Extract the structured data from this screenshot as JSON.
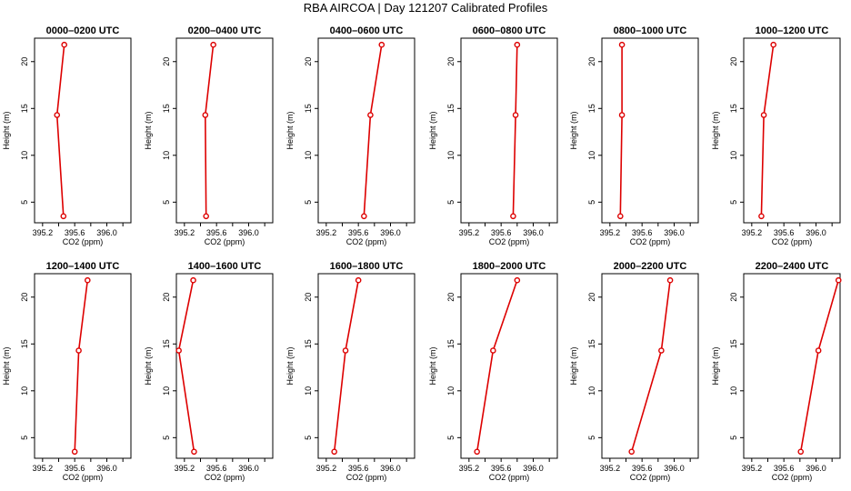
{
  "title": "RBA AIRCOA  |  Day 121207  Calibrated Profiles",
  "colors": {
    "line": "#dd0000",
    "axis": "#000000"
  },
  "chart_data": [
    {
      "type": "line",
      "title": "0000–0200 UTC",
      "xlabel": "CO2 (ppm)",
      "ylabel": "Height (m)",
      "xlim": [
        395.1,
        396.3
      ],
      "ylim": [
        2.8,
        22.5
      ],
      "xticks": [
        "395.2",
        "395.6",
        "396.0"
      ],
      "yticks": [
        "5",
        "10",
        "15",
        "20"
      ],
      "series": [
        {
          "x": [
            395.46,
            395.38,
            395.47
          ],
          "y": [
            3.5,
            14.3,
            21.8
          ]
        }
      ]
    },
    {
      "type": "line",
      "title": "0200–0400 UTC",
      "xlabel": "CO2 (ppm)",
      "ylabel": "Height (m)",
      "xlim": [
        395.1,
        396.3
      ],
      "ylim": [
        2.8,
        22.5
      ],
      "xticks": [
        "395.2",
        "395.6",
        "396.0"
      ],
      "yticks": [
        "5",
        "10",
        "15",
        "20"
      ],
      "series": [
        {
          "x": [
            395.47,
            395.46,
            395.56
          ],
          "y": [
            3.5,
            14.3,
            21.8
          ]
        }
      ]
    },
    {
      "type": "line",
      "title": "0400–0600 UTC",
      "xlabel": "CO2 (ppm)",
      "ylabel": "Height (m)",
      "xlim": [
        395.1,
        396.3
      ],
      "ylim": [
        2.8,
        22.5
      ],
      "xticks": [
        "395.2",
        "395.6",
        "396.0"
      ],
      "yticks": [
        "5",
        "10",
        "15",
        "20"
      ],
      "series": [
        {
          "x": [
            395.67,
            395.75,
            395.89
          ],
          "y": [
            3.5,
            14.3,
            21.8
          ]
        }
      ]
    },
    {
      "type": "line",
      "title": "0600–0800 UTC",
      "xlabel": "CO2 (ppm)",
      "ylabel": "Height (m)",
      "xlim": [
        395.1,
        396.3
      ],
      "ylim": [
        2.8,
        22.5
      ],
      "xticks": [
        "395.2",
        "395.6",
        "396.0"
      ],
      "yticks": [
        "5",
        "10",
        "15",
        "20"
      ],
      "series": [
        {
          "x": [
            395.75,
            395.78,
            395.8
          ],
          "y": [
            3.5,
            14.3,
            21.8
          ]
        }
      ]
    },
    {
      "type": "line",
      "title": "0800–1000 UTC",
      "xlabel": "CO2 (ppm)",
      "ylabel": "Height (m)",
      "xlim": [
        395.1,
        396.3
      ],
      "ylim": [
        2.8,
        22.5
      ],
      "xticks": [
        "395.2",
        "395.6",
        "396.0"
      ],
      "yticks": [
        "5",
        "10",
        "15",
        "20"
      ],
      "series": [
        {
          "x": [
            395.33,
            395.35,
            395.35
          ],
          "y": [
            3.5,
            14.3,
            21.8
          ]
        }
      ]
    },
    {
      "type": "line",
      "title": "1000–1200 UTC",
      "xlabel": "CO2 (ppm)",
      "ylabel": "Height (m)",
      "xlim": [
        395.1,
        396.3
      ],
      "ylim": [
        2.8,
        22.5
      ],
      "xticks": [
        "395.2",
        "395.6",
        "396.0"
      ],
      "yticks": [
        "5",
        "10",
        "15",
        "20"
      ],
      "series": [
        {
          "x": [
            395.32,
            395.35,
            395.47
          ],
          "y": [
            3.5,
            14.3,
            21.8
          ]
        }
      ]
    },
    {
      "type": "line",
      "title": "1200–1400 UTC",
      "xlabel": "CO2 (ppm)",
      "ylabel": "Height (m)",
      "xlim": [
        395.1,
        396.3
      ],
      "ylim": [
        2.8,
        22.5
      ],
      "xticks": [
        "395.2",
        "395.6",
        "396.0"
      ],
      "yticks": [
        "5",
        "10",
        "15",
        "20"
      ],
      "series": [
        {
          "x": [
            395.6,
            395.65,
            395.76
          ],
          "y": [
            3.5,
            14.3,
            21.8
          ]
        }
      ]
    },
    {
      "type": "line",
      "title": "1400–1600 UTC",
      "xlabel": "CO2 (ppm)",
      "ylabel": "Height (m)",
      "xlim": [
        395.1,
        396.3
      ],
      "ylim": [
        2.8,
        22.5
      ],
      "xticks": [
        "395.2",
        "395.6",
        "396.0"
      ],
      "yticks": [
        "5",
        "10",
        "15",
        "20"
      ],
      "series": [
        {
          "x": [
            395.32,
            395.13,
            395.31
          ],
          "y": [
            3.5,
            14.3,
            21.8
          ]
        }
      ]
    },
    {
      "type": "line",
      "title": "1600–1800 UTC",
      "xlabel": "CO2 (ppm)",
      "ylabel": "Height (m)",
      "xlim": [
        395.1,
        396.3
      ],
      "ylim": [
        2.8,
        22.5
      ],
      "xticks": [
        "395.2",
        "395.6",
        "396.0"
      ],
      "yticks": [
        "5",
        "10",
        "15",
        "20"
      ],
      "series": [
        {
          "x": [
            395.3,
            395.44,
            395.6
          ],
          "y": [
            3.5,
            14.3,
            21.8
          ]
        }
      ]
    },
    {
      "type": "line",
      "title": "1800–2000 UTC",
      "xlabel": "CO2 (ppm)",
      "ylabel": "Height (m)",
      "xlim": [
        395.1,
        396.3
      ],
      "ylim": [
        2.8,
        22.5
      ],
      "xticks": [
        "395.2",
        "395.6",
        "396.0"
      ],
      "yticks": [
        "5",
        "10",
        "15",
        "20"
      ],
      "series": [
        {
          "x": [
            395.3,
            395.5,
            395.8
          ],
          "y": [
            3.5,
            14.3,
            21.8
          ]
        }
      ]
    },
    {
      "type": "line",
      "title": "2000–2200 UTC",
      "xlabel": "CO2 (ppm)",
      "ylabel": "Height (m)",
      "xlim": [
        395.1,
        396.3
      ],
      "ylim": [
        2.8,
        22.5
      ],
      "xticks": [
        "395.2",
        "395.6",
        "396.0"
      ],
      "yticks": [
        "5",
        "10",
        "15",
        "20"
      ],
      "series": [
        {
          "x": [
            395.47,
            395.84,
            395.95
          ],
          "y": [
            3.5,
            14.3,
            21.8
          ]
        }
      ]
    },
    {
      "type": "line",
      "title": "2200–2400 UTC",
      "xlabel": "CO2 (ppm)",
      "ylabel": "Height (m)",
      "xlim": [
        395.1,
        396.3
      ],
      "ylim": [
        2.8,
        22.5
      ],
      "xticks": [
        "395.2",
        "395.6",
        "396.0"
      ],
      "yticks": [
        "5",
        "10",
        "15",
        "20"
      ],
      "series": [
        {
          "x": [
            395.81,
            396.03,
            396.28
          ],
          "y": [
            3.5,
            14.3,
            21.8
          ]
        }
      ]
    }
  ]
}
